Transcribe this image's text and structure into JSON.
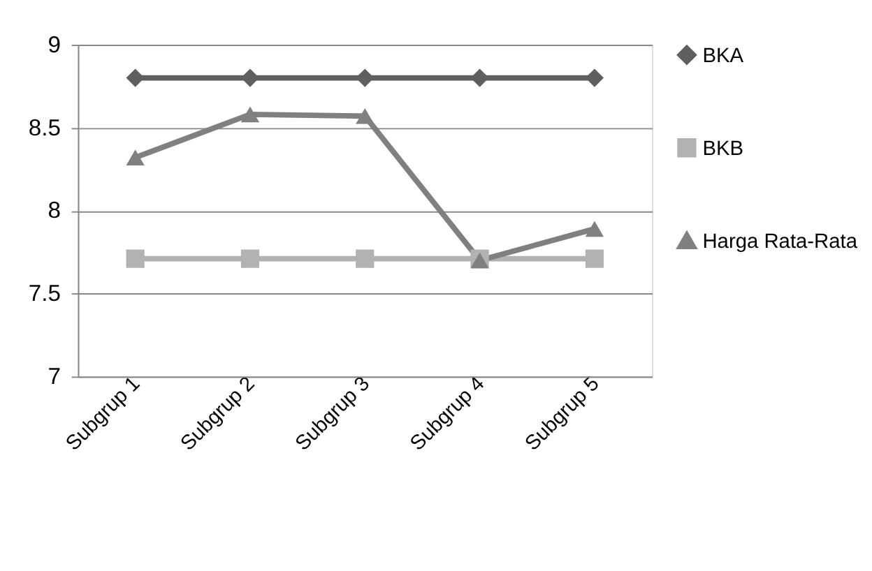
{
  "chart_data": {
    "type": "line",
    "categories": [
      "Subgrup 1",
      "Subgrup 2",
      "Subgrup 3",
      "Subgrup 4",
      "Subgrup 5"
    ],
    "series": [
      {
        "name": "BKA",
        "color": "#5f5f5f",
        "marker": "diamond",
        "values": [
          8.8,
          8.8,
          8.8,
          8.8,
          8.8
        ]
      },
      {
        "name": "BKB",
        "color": "#b2b2b2",
        "marker": "square",
        "values": [
          7.71,
          7.71,
          7.71,
          7.71,
          7.71
        ]
      },
      {
        "name": "Harga Rata-Rata",
        "color": "#808080",
        "marker": "triangle",
        "values": [
          8.32,
          8.58,
          8.57,
          7.7,
          7.89
        ]
      }
    ],
    "ylim": [
      7,
      9
    ],
    "yticks": [
      7,
      7.5,
      8,
      8.5,
      9
    ],
    "grid": "y",
    "legend": "right",
    "line_style": "solid"
  }
}
